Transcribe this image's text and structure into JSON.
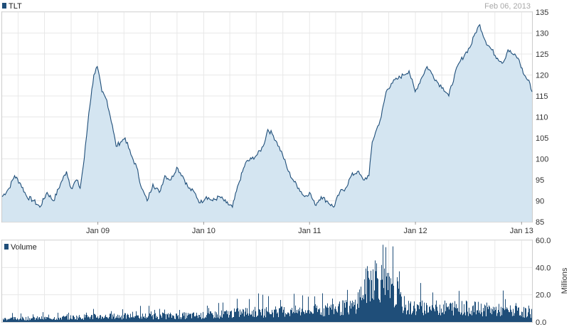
{
  "date": "Feb 06, 2013",
  "colors": {
    "line": "#1f4e79",
    "fill": "#d4e5f1",
    "volume": "#1f4e79",
    "grid": "#e8e8e8",
    "frame": "#cccccc"
  },
  "chart_data": [
    {
      "type": "area",
      "title": "",
      "legend": [
        "TLT"
      ],
      "legend_position": "top-left",
      "grid": true,
      "ylim": [
        85,
        135
      ],
      "yticks": [
        85,
        90,
        95,
        100,
        105,
        110,
        115,
        120,
        125,
        130,
        135
      ],
      "xlim": [
        "2008-02-06",
        "2013-02-06"
      ],
      "xticks": [
        {
          "label": "Jan 09",
          "date": "2009-01-01"
        },
        {
          "label": "Jan 10",
          "date": "2010-01-01"
        },
        {
          "label": "Jan 11",
          "date": "2011-01-01"
        },
        {
          "label": "Jan 12",
          "date": "2012-01-01"
        },
        {
          "label": "Jan 13",
          "date": "2013-01-01"
        }
      ],
      "series": [
        {
          "name": "TLT",
          "x": [
            "2008-02-06",
            "2008-03-01",
            "2008-03-20",
            "2008-04-10",
            "2008-05-01",
            "2008-05-25",
            "2008-06-15",
            "2008-07-10",
            "2008-08-01",
            "2008-08-25",
            "2008-09-15",
            "2008-10-01",
            "2008-10-20",
            "2008-11-01",
            "2008-11-15",
            "2008-12-01",
            "2008-12-18",
            "2008-12-30",
            "2009-01-15",
            "2009-02-01",
            "2009-02-20",
            "2009-03-05",
            "2009-03-20",
            "2009-04-05",
            "2009-04-25",
            "2009-05-15",
            "2009-06-01",
            "2009-06-20",
            "2009-07-10",
            "2009-08-01",
            "2009-08-20",
            "2009-09-10",
            "2009-09-30",
            "2009-10-20",
            "2009-11-10",
            "2009-11-30",
            "2009-12-20",
            "2010-01-10",
            "2010-02-01",
            "2010-02-25",
            "2010-03-20",
            "2010-04-10",
            "2010-05-01",
            "2010-05-25",
            "2010-06-15",
            "2010-07-05",
            "2010-07-25",
            "2010-08-10",
            "2010-08-25",
            "2010-09-10",
            "2010-09-30",
            "2010-10-20",
            "2010-11-05",
            "2010-11-25",
            "2010-12-15",
            "2011-01-01",
            "2011-01-20",
            "2011-02-10",
            "2011-03-01",
            "2011-03-25",
            "2011-04-15",
            "2011-05-05",
            "2011-05-25",
            "2011-06-15",
            "2011-07-05",
            "2011-07-25",
            "2011-08-05",
            "2011-08-20",
            "2011-09-05",
            "2011-09-22",
            "2011-10-10",
            "2011-10-30",
            "2011-11-20",
            "2011-12-10",
            "2011-12-31",
            "2012-01-20",
            "2012-02-10",
            "2012-03-01",
            "2012-03-20",
            "2012-04-05",
            "2012-04-25",
            "2012-05-15",
            "2012-06-01",
            "2012-06-20",
            "2012-07-10",
            "2012-07-25",
            "2012-08-10",
            "2012-08-30",
            "2012-09-20",
            "2012-10-10",
            "2012-10-30",
            "2012-11-15",
            "2012-12-01",
            "2012-12-20",
            "2013-01-10",
            "2013-01-30",
            "2013-02-06"
          ],
          "y": [
            91,
            93,
            96,
            94,
            91,
            90,
            88.5,
            92,
            90,
            94,
            97,
            93,
            95,
            93,
            100,
            111,
            120,
            122,
            116,
            114,
            108,
            103,
            104,
            105,
            101,
            98,
            93,
            90,
            94,
            92,
            96,
            95,
            98,
            96,
            93,
            92,
            89.5,
            91,
            90,
            91,
            89.5,
            88.5,
            94,
            99,
            100,
            101,
            103,
            107,
            106,
            104,
            101,
            97,
            95,
            93,
            91,
            92,
            89,
            91,
            90,
            88.5,
            92,
            93,
            96,
            97,
            95,
            96,
            104,
            107,
            110,
            116,
            118,
            119,
            120,
            121,
            116,
            119,
            122,
            120,
            118,
            117,
            115,
            120,
            123,
            125,
            127,
            130,
            132,
            128,
            126,
            124,
            123,
            126,
            125,
            124,
            120,
            118,
            116
          ]
        }
      ]
    },
    {
      "type": "bar",
      "title": "",
      "legend": [
        "Volume"
      ],
      "legend_position": "top-left",
      "ylabel": "Millions",
      "grid": true,
      "ylim": [
        0,
        60
      ],
      "yticks": [
        "0.0",
        "20.0",
        "40.0",
        "60.0"
      ],
      "series": [
        {
          "name": "Volume",
          "x": [
            "2008-02-06",
            "2008-07-01",
            "2009-01-01",
            "2009-07-01",
            "2010-01-01",
            "2010-06-01",
            "2011-01-01",
            "2011-06-01",
            "2011-08-10",
            "2011-12-01",
            "2012-06-01",
            "2012-12-01",
            "2013-02-06"
          ],
          "y": [
            3,
            3.5,
            5,
            5.5,
            6,
            9,
            10,
            14,
            44,
            13,
            13,
            10,
            8
          ]
        }
      ]
    }
  ]
}
